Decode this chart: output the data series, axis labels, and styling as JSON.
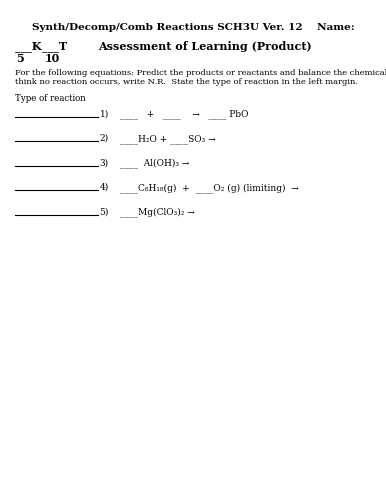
{
  "title": "Synth/Decomp/Comb Reactions SCH3U Ver. 12    Name:",
  "subtitle": "Assessment of Learning (Product)",
  "k_label": "___K",
  "k_val": "5",
  "t_label": "___T",
  "t_val": "10",
  "instructions_line1": "For the following equations: Predict the products or reactants and balance the chemical equation.  If you",
  "instructions_line2": "think no reaction occurs, write N.R.  State the type of reaction in the left margin.",
  "type_label": "Type of reaction",
  "background": "#ffffff",
  "text_color": "#000000",
  "line_color": "#000000",
  "eq1": "____   +   ____    →   ____ PbO",
  "eq2": "____H₂O + ____SO₃ →",
  "eq3": "____  Al(OH)₃ →",
  "eq4": "____C₈H₁₈(g)  +  ____O₂ (g) (limiting)  →",
  "eq5": "____Mg(ClO₃)₂ →",
  "nums": [
    "1)",
    "2)",
    "3)",
    "4)",
    "5)"
  ]
}
